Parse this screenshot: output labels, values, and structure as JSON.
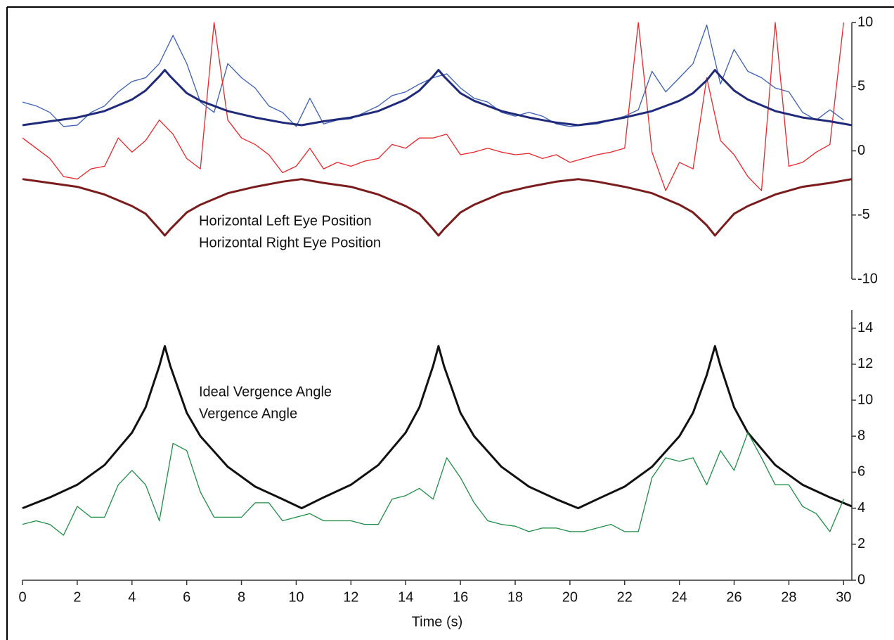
{
  "chart_data": [
    {
      "type": "line",
      "xlim": [
        0,
        30.3
      ],
      "ylim": [
        -10,
        10
      ],
      "yticks": [
        -10,
        -5,
        0,
        5,
        10
      ],
      "x": [
        0,
        0.5,
        1,
        1.5,
        2,
        2.5,
        3,
        3.5,
        4,
        4.5,
        5,
        5.5,
        6,
        6.5,
        7,
        7.5,
        8,
        8.5,
        9,
        9.5,
        10,
        10.5,
        11,
        11.5,
        12,
        12.5,
        13,
        13.5,
        14,
        14.5,
        15,
        15.5,
        16,
        16.5,
        17,
        17.5,
        18,
        18.5,
        19,
        19.5,
        20,
        20.5,
        21,
        21.5,
        22,
        22.5,
        23,
        23.5,
        24,
        24.5,
        25,
        25.5,
        26,
        26.5,
        27,
        27.5,
        28,
        28.5,
        29,
        29.5,
        30
      ],
      "series": [
        {
          "name": "Horizontal Left Eye Position",
          "color": "#3b5fb5",
          "values": [
            3.8,
            3.5,
            3.0,
            1.9,
            2.0,
            3.0,
            3.5,
            4.6,
            5.4,
            5.7,
            6.8,
            9.0,
            6.8,
            3.8,
            3.0,
            6.8,
            5.7,
            4.9,
            3.5,
            3.0,
            1.9,
            4.1,
            2.1,
            2.4,
            2.5,
            3.0,
            3.5,
            4.3,
            4.6,
            5.2,
            5.7,
            6.0,
            4.9,
            4.1,
            3.8,
            3.0,
            2.7,
            3.0,
            2.7,
            2.1,
            1.9,
            2.0,
            2.1,
            2.4,
            2.7,
            3.2,
            6.2,
            4.6,
            5.7,
            6.8,
            9.8,
            5.2,
            7.9,
            6.2,
            5.7,
            4.9,
            4.6,
            3.0,
            2.4,
            3.2,
            2.4
          ]
        },
        {
          "name": "Horizontal Right Eye Position",
          "color": "#e8262b",
          "values": [
            1.0,
            0.2,
            -0.6,
            -2.0,
            -2.2,
            -1.4,
            -1.2,
            1.0,
            -0.1,
            0.8,
            2.4,
            1.3,
            -0.6,
            -1.4,
            10,
            2.4,
            1.0,
            0.5,
            -0.3,
            -1.7,
            -1.2,
            0.2,
            -1.4,
            -0.9,
            -1.2,
            -0.8,
            -0.6,
            0.5,
            0.2,
            1.0,
            1.0,
            1.3,
            -0.3,
            -0.1,
            0.2,
            -0.1,
            -0.3,
            -0.2,
            -0.6,
            -0.3,
            -0.9,
            -0.6,
            -0.3,
            -0.1,
            0.2,
            10,
            -0.1,
            -3.1,
            -0.9,
            -1.4,
            5.7,
            0.8,
            -0.3,
            -2.0,
            -3.1,
            10,
            -1.2,
            -0.9,
            -0.1,
            0.5,
            10
          ]
        },
        {
          "color": "#1f2a7a",
          "x": [
            0,
            1,
            2,
            3,
            4,
            4.5,
            5,
            5.2,
            5.4,
            6,
            6.5,
            7.5,
            8.5,
            9.5,
            10.2,
            11,
            12,
            13,
            14,
            14.5,
            15,
            15.2,
            15.4,
            16,
            16.5,
            17.5,
            18.5,
            19.5,
            20.3,
            21,
            22,
            23,
            24,
            24.5,
            25,
            25.3,
            25.5,
            26,
            26.5,
            27.5,
            28.5,
            29.5,
            30.3
          ],
          "values": [
            2.0,
            2.3,
            2.6,
            3.1,
            4.0,
            4.7,
            5.8,
            6.3,
            5.8,
            4.5,
            3.9,
            3.1,
            2.6,
            2.2,
            2.0,
            2.3,
            2.6,
            3.1,
            4.0,
            4.7,
            5.8,
            6.3,
            5.8,
            4.5,
            3.9,
            3.1,
            2.6,
            2.2,
            2.0,
            2.2,
            2.6,
            3.1,
            3.9,
            4.5,
            5.5,
            6.3,
            5.8,
            4.7,
            4.0,
            3.1,
            2.6,
            2.3,
            2.0
          ]
        },
        {
          "color": "#7b1c1c",
          "x": [
            0,
            1,
            2,
            3,
            4,
            4.5,
            5,
            5.2,
            5.4,
            6,
            6.5,
            7.5,
            8.5,
            9.5,
            10.2,
            11,
            12,
            13,
            14,
            14.5,
            15,
            15.2,
            15.4,
            16,
            16.5,
            17.5,
            18.5,
            19.5,
            20.3,
            21,
            22,
            23,
            24,
            24.5,
            25,
            25.3,
            25.5,
            26,
            26.5,
            27.5,
            28.5,
            29.5,
            30.3
          ],
          "values": [
            -2.2,
            -2.5,
            -2.8,
            -3.4,
            -4.3,
            -4.9,
            -6.1,
            -6.6,
            -6.1,
            -4.8,
            -4.2,
            -3.3,
            -2.8,
            -2.4,
            -2.2,
            -2.5,
            -2.8,
            -3.4,
            -4.3,
            -4.9,
            -6.1,
            -6.6,
            -6.1,
            -4.8,
            -4.2,
            -3.3,
            -2.8,
            -2.4,
            -2.2,
            -2.4,
            -2.8,
            -3.3,
            -4.2,
            -4.8,
            -5.8,
            -6.6,
            -6.1,
            -4.9,
            -4.3,
            -3.4,
            -2.8,
            -2.5,
            -2.2
          ]
        }
      ]
    },
    {
      "type": "line",
      "xlim": [
        0,
        30.3
      ],
      "ylim": [
        0,
        15
      ],
      "yticks": [
        0,
        2,
        4,
        6,
        8,
        10,
        12,
        14
      ],
      "xticks": [
        0,
        2,
        4,
        6,
        8,
        10,
        12,
        14,
        16,
        18,
        20,
        22,
        24,
        26,
        28,
        30
      ],
      "xlabel": "Time (s)",
      "x": [
        0,
        0.5,
        1,
        1.5,
        2,
        2.5,
        3,
        3.5,
        4,
        4.5,
        5,
        5.5,
        6,
        6.5,
        7,
        7.5,
        8,
        8.5,
        9,
        9.5,
        10,
        10.5,
        11,
        11.5,
        12,
        12.5,
        13,
        13.5,
        14,
        14.5,
        15,
        15.5,
        16,
        16.5,
        17,
        17.5,
        18,
        18.5,
        19,
        19.5,
        20,
        20.5,
        21,
        21.5,
        22,
        22.5,
        23,
        23.5,
        24,
        24.5,
        25,
        25.5,
        26,
        26.5,
        27,
        27.5,
        28,
        28.5,
        29,
        29.5,
        30
      ],
      "series": [
        {
          "name": "Ideal Vergence Angle",
          "color": "#111111",
          "x": [
            0,
            1,
            2,
            3,
            4,
            4.5,
            5,
            5.2,
            5.4,
            6,
            6.5,
            7.5,
            8.5,
            9.5,
            10.2,
            11,
            12,
            13,
            14,
            14.5,
            15,
            15.2,
            15.4,
            16,
            16.5,
            17.5,
            18.5,
            19.5,
            20.3,
            21,
            22,
            23,
            24,
            24.5,
            25,
            25.3,
            25.5,
            26,
            26.5,
            27.5,
            28.5,
            29.5,
            30.3
          ],
          "values": [
            4.0,
            4.6,
            5.3,
            6.4,
            8.2,
            9.6,
            11.9,
            13.0,
            11.9,
            9.3,
            8.0,
            6.3,
            5.2,
            4.5,
            4.0,
            4.6,
            5.3,
            6.4,
            8.2,
            9.6,
            11.9,
            13.0,
            11.9,
            9.3,
            8.0,
            6.3,
            5.2,
            4.5,
            4.0,
            4.5,
            5.2,
            6.3,
            8.0,
            9.3,
            11.4,
            13.0,
            11.9,
            9.6,
            8.2,
            6.4,
            5.3,
            4.6,
            4.1
          ]
        },
        {
          "name": "Vergence Angle",
          "color": "#1e8c45",
          "values": [
            3.1,
            3.3,
            3.1,
            2.5,
            4.1,
            3.5,
            3.5,
            5.3,
            6.1,
            5.3,
            3.3,
            7.6,
            7.2,
            4.9,
            3.5,
            3.5,
            3.5,
            4.3,
            4.3,
            3.3,
            3.5,
            3.7,
            3.3,
            3.3,
            3.3,
            3.1,
            3.1,
            4.5,
            4.7,
            5.1,
            4.5,
            6.8,
            5.7,
            4.3,
            3.3,
            3.1,
            3.0,
            2.7,
            2.9,
            2.9,
            2.7,
            2.7,
            2.9,
            3.1,
            2.7,
            2.7,
            5.7,
            6.8,
            6.6,
            6.8,
            5.3,
            7.2,
            6.1,
            8.2,
            6.8,
            5.3,
            5.3,
            4.1,
            3.7,
            2.7,
            4.5
          ]
        }
      ]
    }
  ]
}
